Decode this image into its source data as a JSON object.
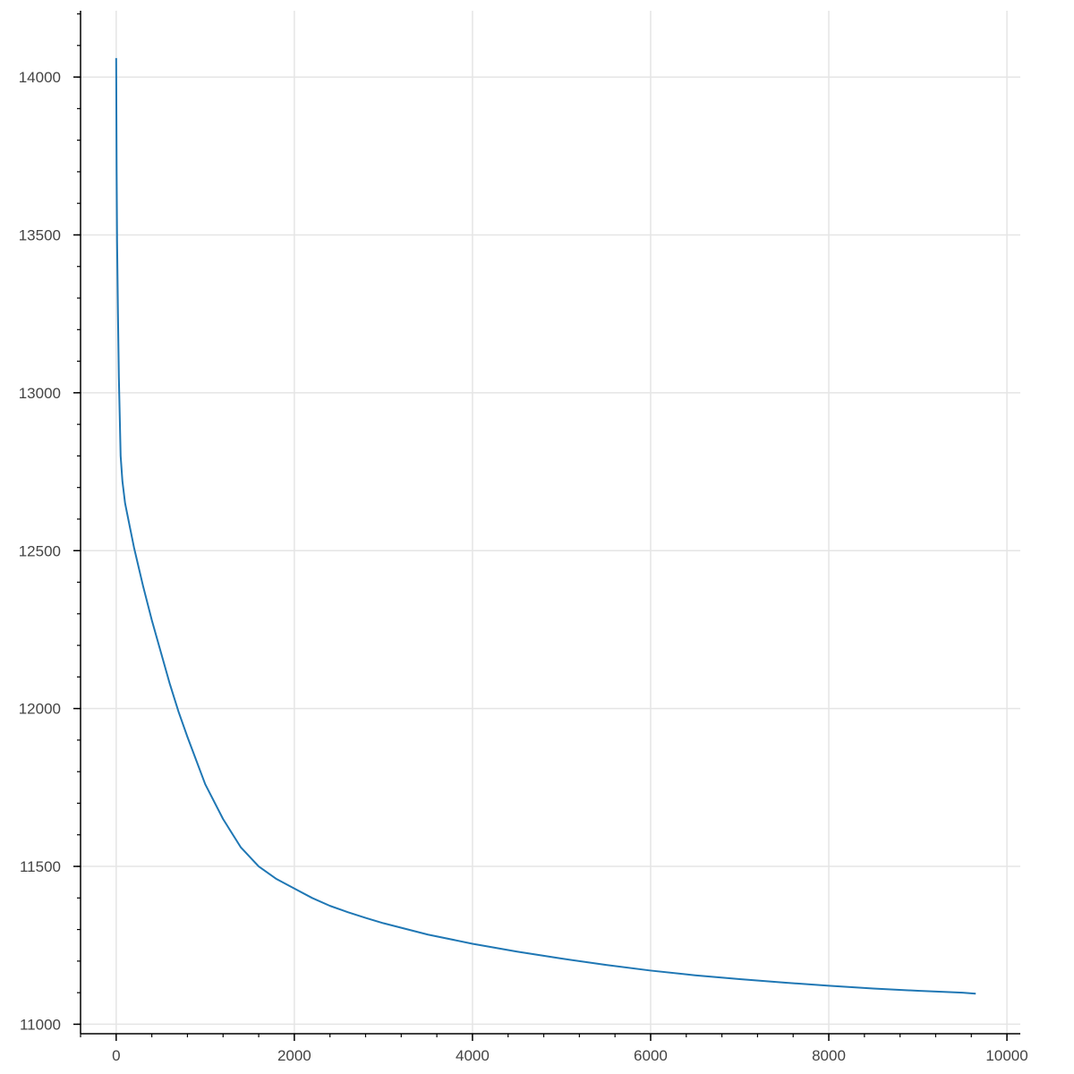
{
  "chart_data": {
    "type": "line",
    "title": "",
    "xlabel": "",
    "ylabel": "",
    "xlim": [
      -400,
      10150
    ],
    "ylim": [
      10970,
      14210
    ],
    "grid": true,
    "x_ticks": [
      0,
      2000,
      4000,
      6000,
      8000,
      10000
    ],
    "x_tick_labels": [
      "0",
      "2000",
      "4000",
      "6000",
      "8000",
      "10000"
    ],
    "y_ticks": [
      11000,
      11500,
      12000,
      12500,
      13000,
      13500,
      14000
    ],
    "y_tick_labels": [
      "11000",
      "11500",
      "12000",
      "12500",
      "13000",
      "13500",
      "14000"
    ],
    "x_minor_step": 400,
    "y_minor_step": 100,
    "series": [
      {
        "color": "#1f77b4",
        "x": [
          0,
          5,
          10,
          20,
          30,
          50,
          70,
          100,
          150,
          200,
          300,
          400,
          500,
          600,
          700,
          800,
          1000,
          1200,
          1400,
          1600,
          1800,
          2000,
          2200,
          2400,
          2600,
          2800,
          3000,
          3500,
          4000,
          4500,
          5000,
          5500,
          6000,
          6500,
          7000,
          7500,
          8000,
          8500,
          9000,
          9500,
          9650
        ],
        "y": [
          14060,
          13700,
          13480,
          13250,
          13050,
          12800,
          12720,
          12650,
          12580,
          12510,
          12390,
          12280,
          12180,
          12080,
          11990,
          11910,
          11760,
          11650,
          11560,
          11500,
          11460,
          11430,
          11400,
          11375,
          11355,
          11337,
          11320,
          11284,
          11255,
          11230,
          11208,
          11188,
          11170,
          11155,
          11143,
          11132,
          11122,
          11113,
          11106,
          11100,
          11097
        ]
      }
    ]
  }
}
